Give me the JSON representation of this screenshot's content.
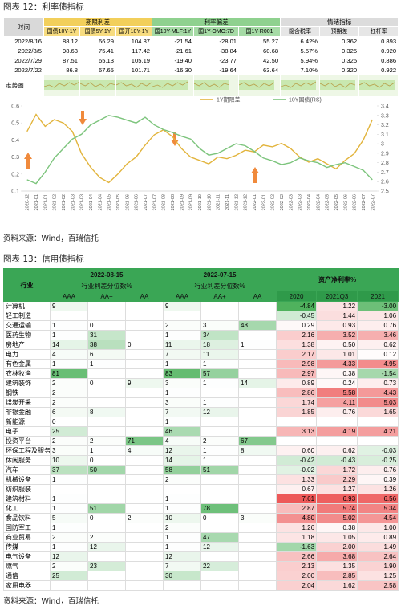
{
  "fig12": {
    "title": "图表 12：利率债指标",
    "table": {
      "group_headers": [
        "时间",
        "期限利差",
        "利率偏差",
        "情绪指标"
      ],
      "columns": [
        "国债10Y-1Y",
        "国债5Y-1Y",
        "国开10Y-1Y",
        "国10Y-MLF:1Y",
        "国1Y-OMO:7D",
        "国1Y-R001",
        "隐含税率",
        "预期差",
        "杠杆率"
      ],
      "rows": [
        [
          "2022/8/16",
          "88.12",
          "66.29",
          "104.87",
          "-21.54",
          "-28.01",
          "55.27",
          "6.42%",
          "0.362",
          "0.893"
        ],
        [
          "2022/8/5",
          "98.63",
          "75.41",
          "117.42",
          "-21.61",
          "-38.84",
          "60.68",
          "5.57%",
          "0.325",
          "0.920"
        ],
        [
          "2022/7/29",
          "87.51",
          "65.13",
          "105.19",
          "-19.40",
          "-23.77",
          "42.50",
          "5.94%",
          "0.325",
          "0.886"
        ],
        [
          "2022/7/22",
          "86.8",
          "67.65",
          "101.71",
          "-16.30",
          "-19.64",
          "63.64",
          "7.10%",
          "0.320",
          "0.922"
        ]
      ],
      "trend_label": "走势图"
    },
    "source": "资料来源：Wind，百瑞信托"
  },
  "chart_data": {
    "type": "line",
    "categories": [
      "2020-12",
      "2021-01",
      "2021-01",
      "2021-02",
      "2021-02",
      "2021-03",
      "2021-03",
      "2021-04",
      "2021-04",
      "2021-05",
      "2021-05",
      "2021-06",
      "2021-06",
      "2021-07",
      "2021-07",
      "2021-08",
      "2021-08",
      "2021-09",
      "2021-09",
      "2021-10",
      "2021-10",
      "2021-11",
      "2021-11",
      "2021-12",
      "2021-12",
      "2022-01",
      "2022-01",
      "2022-02",
      "2022-02",
      "2022-03",
      "2022-03",
      "2022-04",
      "2022-04",
      "2022-05",
      "2022-05",
      "2022-06",
      "2022-06",
      "2022-07",
      "2022-07"
    ],
    "series": [
      {
        "name": "1Y期限差",
        "color": "#e2b43c",
        "values": [
          0.45,
          0.55,
          0.48,
          0.52,
          0.5,
          0.45,
          0.32,
          0.24,
          0.18,
          0.15,
          0.2,
          0.26,
          0.3,
          0.37,
          0.43,
          0.46,
          0.42,
          0.35,
          0.3,
          0.28,
          0.26,
          0.3,
          0.29,
          0.31,
          0.34,
          0.33,
          0.37,
          0.36,
          0.38,
          0.35,
          0.3,
          0.27,
          0.29,
          0.26,
          0.23,
          0.28,
          0.32,
          0.4,
          0.52
        ]
      },
      {
        "name": "10Y国债(RS)",
        "color": "#7cc47c",
        "axis": "y2",
        "values": [
          2.62,
          2.58,
          2.7,
          2.85,
          2.95,
          3.05,
          3.1,
          3.2,
          3.25,
          3.3,
          3.28,
          3.25,
          3.22,
          3.28,
          3.2,
          3.15,
          3.12,
          3.08,
          3.05,
          2.95,
          2.88,
          2.9,
          2.95,
          3.0,
          2.98,
          2.92,
          2.85,
          2.82,
          2.78,
          2.8,
          2.85,
          2.82,
          2.8,
          2.75,
          2.78,
          2.8,
          2.76,
          2.72,
          2.62
        ]
      }
    ],
    "ylim": [
      0.1,
      0.6
    ],
    "yticks": [
      0.1,
      0.2,
      0.3,
      0.4,
      0.5,
      0.6
    ],
    "y2lim": [
      2.5,
      3.4
    ],
    "y2ticks": [
      2.5,
      2.6,
      2.7,
      2.8,
      2.9,
      3,
      3.1,
      3.2,
      3.3,
      3.4
    ],
    "grid": false
  },
  "fig13": {
    "title": "图表 13：信用债指标",
    "table": {
      "industry_header": "行业",
      "groups": [
        {
          "date": "2022-08-15",
          "subtitle": "行业利差分位数%"
        },
        {
          "date": "2022-07-15",
          "subtitle": "行业利差分位数%"
        }
      ],
      "roa_header": "资产净利率%",
      "columns": [
        "AAA",
        "AA+",
        "AA",
        "AAA",
        "AA+",
        "AA",
        "2020",
        "2021Q3",
        "2021"
      ],
      "rows": [
        [
          "计算机",
          9,
          null,
          null,
          9,
          null,
          null,
          "-4.84",
          "1.22",
          "-3.00"
        ],
        [
          "轻工制造",
          null,
          null,
          null,
          null,
          null,
          null,
          "-0.45",
          "1.44",
          "1.06"
        ],
        [
          "交通运输",
          1,
          0,
          null,
          2,
          3,
          48,
          "0.29",
          "0.93",
          "0.76"
        ],
        [
          "医药生物",
          1,
          31,
          null,
          1,
          34,
          null,
          "2.16",
          "3.52",
          "3.46"
        ],
        [
          "房地产",
          14,
          38,
          0,
          11,
          18,
          1,
          "1.38",
          "0.50",
          "0.62"
        ],
        [
          "电力",
          4,
          6,
          null,
          7,
          11,
          null,
          "2.17",
          "1.01",
          "0.12"
        ],
        [
          "有色金属",
          1,
          1,
          null,
          1,
          1,
          null,
          "2.98",
          "4.33",
          "4.95"
        ],
        [
          "农林牧渔",
          81,
          null,
          null,
          83,
          57,
          null,
          "2.97",
          "0.38",
          "-1.54"
        ],
        [
          "建筑装饰",
          2,
          0,
          9,
          3,
          1,
          14,
          "0.89",
          "0.24",
          "0.73"
        ],
        [
          "钢铁",
          2,
          null,
          null,
          1,
          null,
          null,
          "2.86",
          "5.58",
          "4.43"
        ],
        [
          "煤炭开采",
          2,
          null,
          null,
          3,
          1,
          null,
          "1.74",
          "4.11",
          "5.03"
        ],
        [
          "非银金融",
          6,
          8,
          null,
          7,
          12,
          null,
          "1.85",
          "0.76",
          "1.65"
        ],
        [
          "新能源",
          0,
          null,
          null,
          1,
          null,
          null,
          null,
          null,
          null
        ],
        [
          "电子",
          25,
          null,
          null,
          46,
          null,
          null,
          "3.13",
          "4.19",
          "4.21"
        ],
        [
          "投资平台",
          2,
          2,
          71,
          4,
          2,
          67,
          null,
          null,
          null
        ],
        [
          "环保工程及服务",
          3,
          1,
          4,
          12,
          1,
          8,
          "0.60",
          "0.62",
          "-0.03"
        ],
        [
          "休闲服务",
          10,
          0,
          null,
          14,
          1,
          null,
          "-0.42",
          "-0.43",
          "-0.25"
        ],
        [
          "汽车",
          37,
          50,
          null,
          58,
          51,
          null,
          "-0.02",
          "1.72",
          "0.76"
        ],
        [
          "机械设备",
          1,
          null,
          null,
          2,
          null,
          null,
          "1.33",
          "2.29",
          "0.39"
        ],
        [
          "纺织服装",
          null,
          null,
          null,
          null,
          null,
          null,
          "0.67",
          "1.27",
          "1.26"
        ],
        [
          "建筑材料",
          1,
          null,
          null,
          1,
          null,
          null,
          "7.61",
          "6.93",
          "6.56"
        ],
        [
          "化工",
          1,
          51,
          null,
          1,
          78,
          null,
          "2.87",
          "5.74",
          "5.34"
        ],
        [
          "食品饮料",
          5,
          0,
          2,
          10,
          0,
          3,
          "4.80",
          "5.02",
          "4.54"
        ],
        [
          "国防军工",
          1,
          null,
          null,
          2,
          null,
          null,
          "1.26",
          "0.38",
          "1.00"
        ],
        [
          "商业贸易",
          2,
          2,
          null,
          1,
          47,
          null,
          "1.18",
          "1.05",
          "0.89"
        ],
        [
          "传媒",
          1,
          12,
          null,
          1,
          12,
          null,
          "-1.63",
          "2.00",
          "1.49"
        ],
        [
          "电气设备",
          12,
          null,
          null,
          12,
          null,
          null,
          "2.66",
          "3.68",
          "2.64"
        ],
        [
          "燃气",
          2,
          23,
          null,
          7,
          22,
          null,
          "2.13",
          "1.35",
          "1.90"
        ],
        [
          "通信",
          25,
          null,
          null,
          30,
          null,
          null,
          "2.00",
          "2.85",
          "1.25"
        ],
        [
          "家用电器",
          null,
          null,
          null,
          null,
          null,
          null,
          "2.04",
          "1.62",
          "2.58"
        ]
      ]
    },
    "source": "资料来源：Wind，百瑞信托"
  }
}
